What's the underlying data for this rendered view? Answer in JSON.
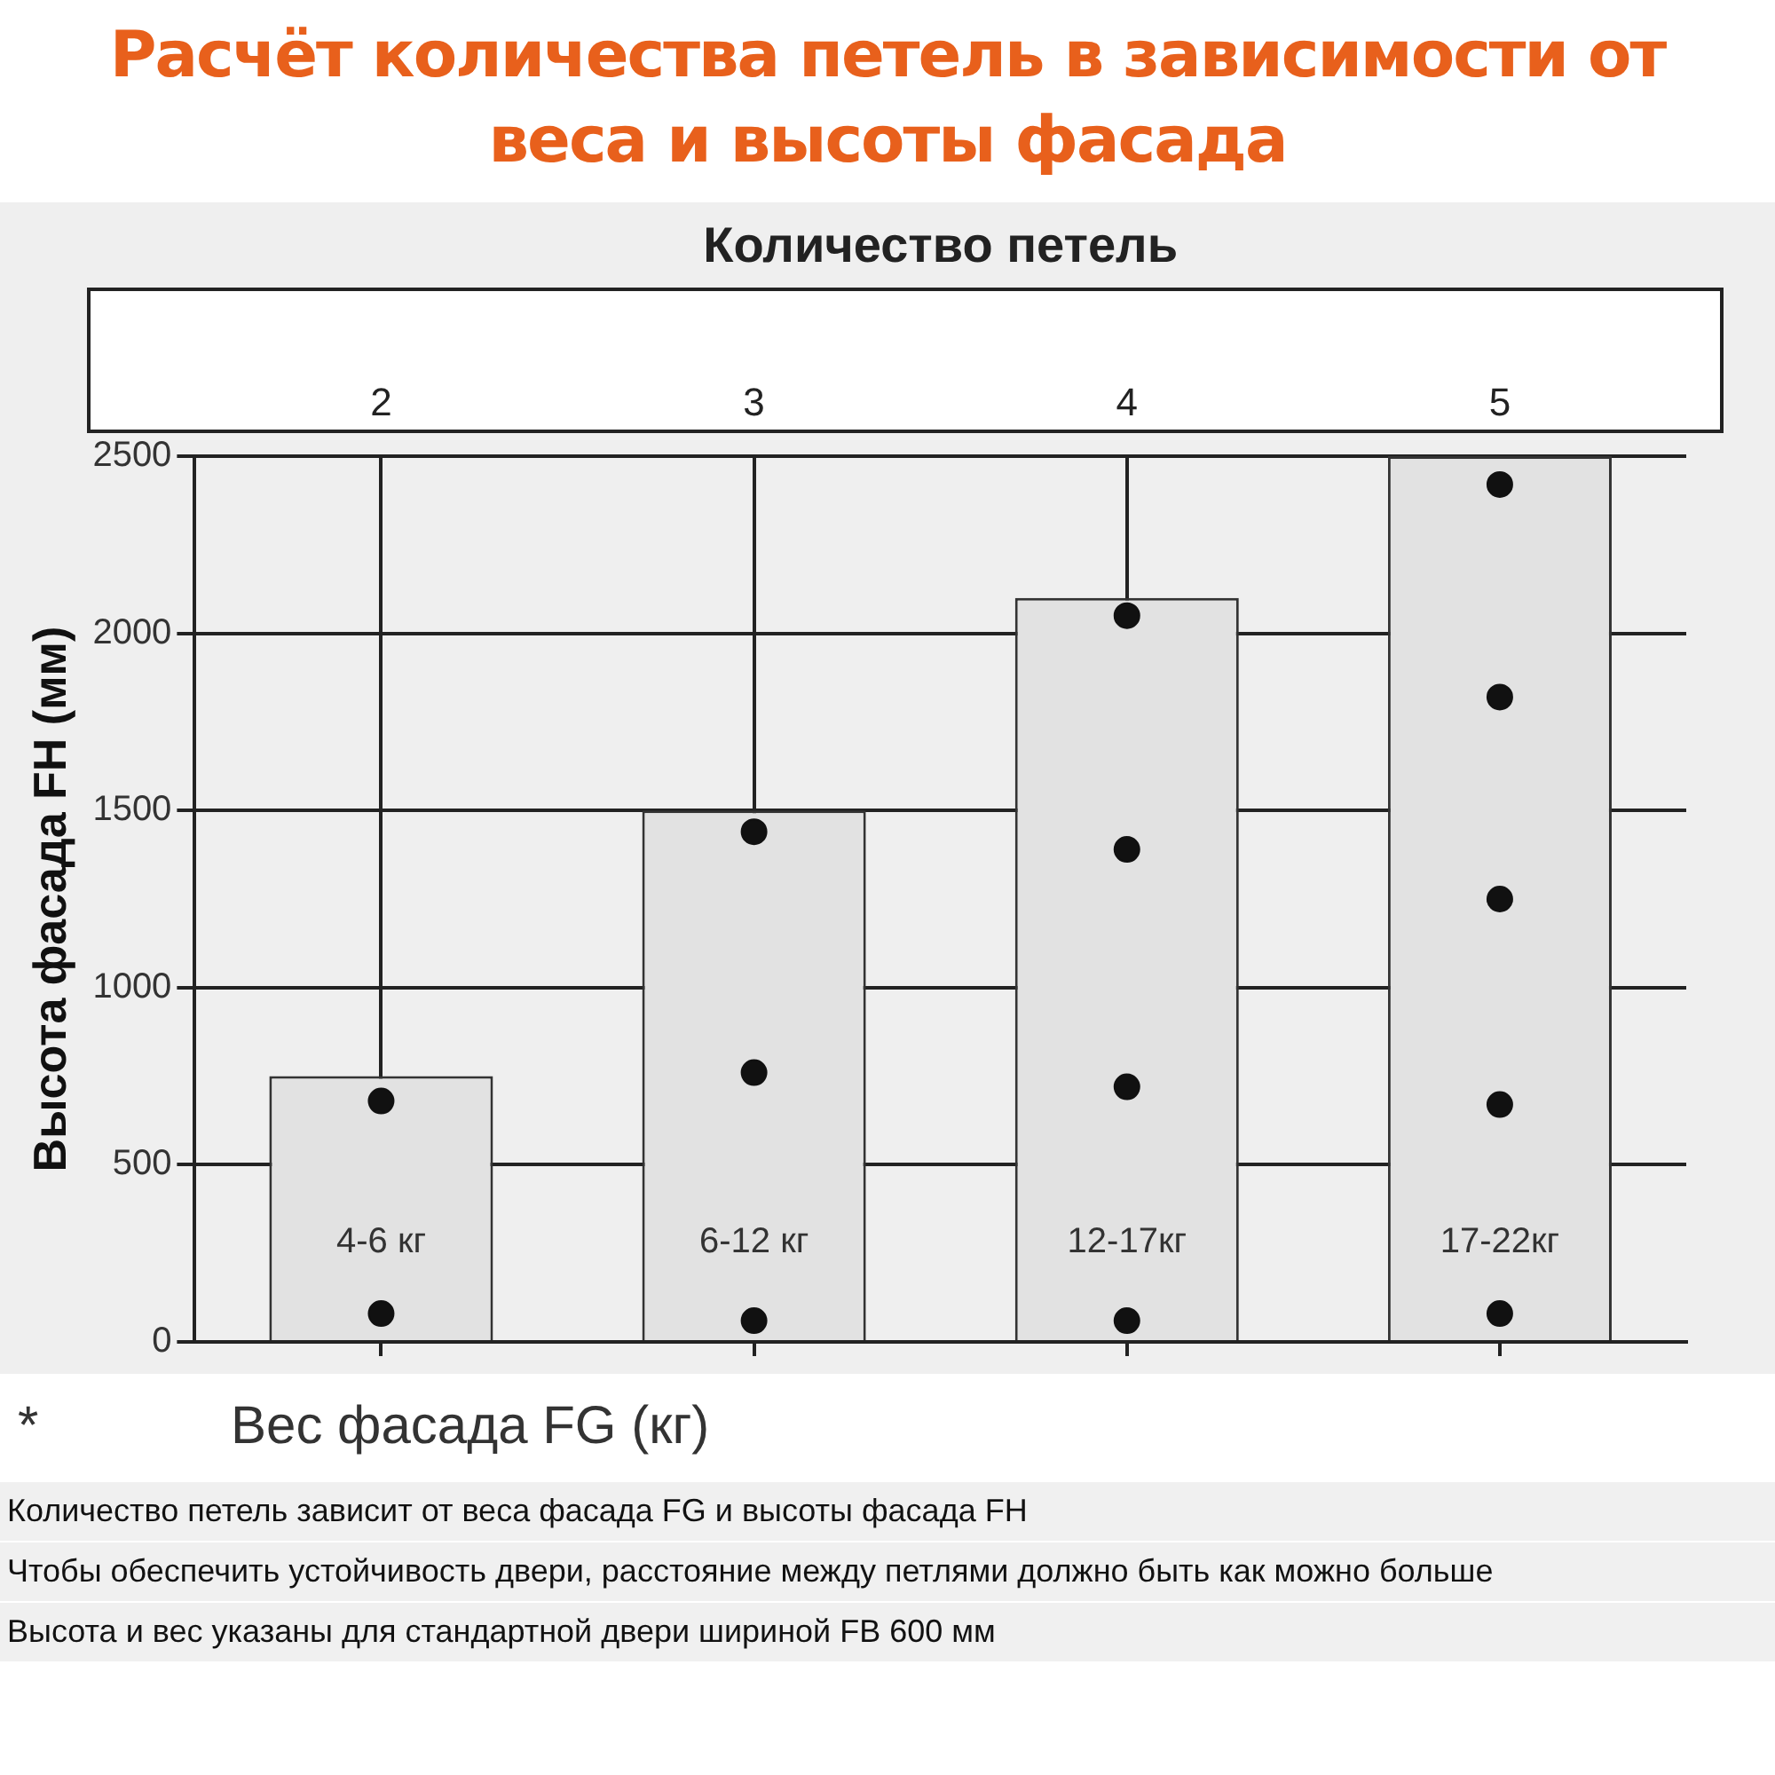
{
  "chart_data": {
    "type": "bar",
    "title": "Расчёт количества петель в зависимости от веса и высоты фасада",
    "categories": [
      "4-6 кг",
      "6-12 кг",
      "12-17кг",
      "17-22кг"
    ],
    "series": [
      {
        "color": "#e2e2e2",
        "values": [
          750,
          1500,
          2100,
          2500
        ]
      },
      {
        "type": "scatter",
        "color": "#111111",
        "x": [
          "4-6 кг",
          "4-6 кг",
          "6-12 кг",
          "6-12 кг",
          "6-12 кг",
          "12-17кг",
          "12-17кг",
          "12-17кг",
          "12-17кг",
          "17-22кг",
          "17-22кг",
          "17-22кг",
          "17-22кг",
          "17-22кг"
        ],
        "values": [
          680,
          80,
          1440,
          760,
          60,
          2050,
          1390,
          720,
          60,
          2420,
          1820,
          1250,
          670,
          80
        ]
      }
    ],
    "ylabel": "Высота фасада FH (мм)",
    "xlabel": "Вес фасада FG (кг)",
    "x2label": "Количество петель",
    "x2lim": [
      1.5,
      5.5
    ],
    "x2ticks": [
      2,
      3,
      4,
      5
    ],
    "ylim": [
      0,
      2500
    ],
    "yticks": [
      0,
      500,
      1000,
      1500,
      2000,
      2500
    ],
    "grid": true,
    "legend": false,
    "marker": "circle",
    "annotations": [
      "*",
      "Количество петель зависит от веса фасада FG и высоты фасада FH",
      "Чтобы обеспечить устойчивость двери, расстояние между петлями должно быть как можно больше",
      "Высота и вес указаны для стандартной двери шириной FB 600 мм"
    ]
  }
}
